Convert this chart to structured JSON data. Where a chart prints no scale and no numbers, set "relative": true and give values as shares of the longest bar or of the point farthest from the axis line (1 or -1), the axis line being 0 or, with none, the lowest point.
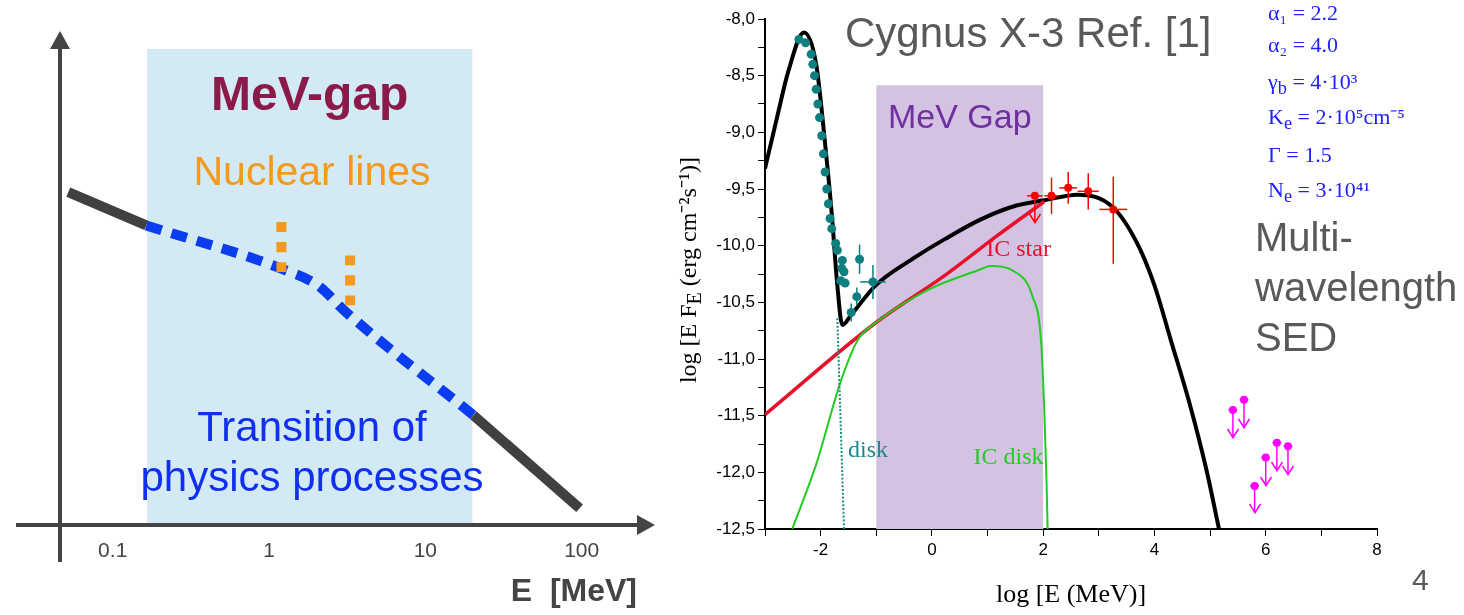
{
  "chart_data": [
    {
      "type": "line",
      "log": "x",
      "relative": true,
      "tick_labels": "x",
      "xlabel": "E  [MeV]",
      "xlim": [
        0.046,
        226
      ],
      "xticks": [
        0.1,
        1,
        10,
        100
      ],
      "bands": [
        {
          "axis": "x",
          "from": 0.166,
          "to": 20,
          "label": "MeV-gap",
          "color": "#d3e9f3"
        }
      ],
      "annotations": [
        "Nuclear lines",
        "Transition of physics processes"
      ],
      "series": [
        {
          "color": "#404040",
          "x": [
            0.052,
            0.164,
            1,
            20.3,
            97
          ],
          "values": [
            1,
            0.9,
            null,
            0.33,
            0.05
          ],
          "line_style": "solid",
          "marker": "none"
        },
        {
          "color": "#0a3cf0",
          "x": [
            0.164,
            1.2,
            2.05,
            3.1,
            20.3
          ],
          "values": [
            0.9,
            0.77,
            0.72,
            0.64,
            0.33
          ],
          "line_style": "dashed",
          "marker": "none"
        },
        {
          "color": "#f39a1e",
          "x": [
            1.2,
            1.2
          ],
          "values": [
            0.76,
            0.91
          ],
          "line_style": "dotted",
          "marker": "none"
        },
        {
          "color": "#f39a1e",
          "x": [
            3.3,
            3.3
          ],
          "values": [
            0.66,
            0.81
          ],
          "line_style": "dotted",
          "marker": "none"
        }
      ]
    },
    {
      "type": "line",
      "title": "Cygnus X-3 Ref. [1]",
      "xlabel": "log [E (MeV)]",
      "ylabel": "log [E F$_{E}$ (erg cm⁻²s⁻¹)]",
      "xlim": [
        -3,
        8
      ],
      "xticks": [
        {
          "value": -3,
          "label": null
        },
        -2,
        {
          "value": -1,
          "label": null
        },
        0,
        {
          "value": 1,
          "label": null
        },
        2,
        {
          "value": 3,
          "label": null
        },
        4,
        {
          "value": 5,
          "label": null
        },
        6,
        {
          "value": 7,
          "label": null
        },
        8
      ],
      "ylim": [
        -12.5,
        -8
      ],
      "yticks": [
        {
          "value": -8,
          "label": "-8,0"
        },
        {
          "value": -8.25,
          "label": null
        },
        {
          "value": -8.5,
          "label": "-8,5"
        },
        {
          "value": -8.75,
          "label": null
        },
        {
          "value": -9,
          "label": "-9,0"
        },
        {
          "value": -9.25,
          "label": null
        },
        {
          "value": -9.5,
          "label": "-9,5"
        },
        {
          "value": -9.75,
          "label": null
        },
        {
          "value": -10,
          "label": "-10,0"
        },
        {
          "value": -10.25,
          "label": null
        },
        {
          "value": -10.5,
          "label": "-10,5"
        },
        {
          "value": -10.75,
          "label": null
        },
        {
          "value": -11,
          "label": "-11,0"
        },
        {
          "value": -11.25,
          "label": null
        },
        {
          "value": -11.5,
          "label": "-11,5"
        },
        {
          "value": -11.75,
          "label": null
        },
        {
          "value": -12,
          "label": "-12,0"
        },
        {
          "value": -12.25,
          "label": null
        },
        {
          "value": -12.5,
          "label": "-12,5"
        }
      ],
      "bands": [
        {
          "axis": "x",
          "from": -1,
          "to": 2,
          "label": "MeV Gap",
          "color": "#d4c2e3"
        }
      ],
      "annotations": [
        "α₁ = 2.2",
        "α₂ = 4.0",
        "γ$_{b}$ = 4·10³",
        "K$_{e}$ = 2·10⁵cm⁻⁵",
        "Γ = 1.5",
        "N$_{e}$ = 3·10⁴¹",
        "Multi-wavelength SED",
        "4"
      ],
      "series": [
        {
          "color": "#000000",
          "x": [
            -3,
            -2.77,
            -2.58,
            -2.3,
            -2.08,
            -1.92,
            -1.8,
            -1.7,
            -1.61,
            -1.45,
            -1.01,
            -0.39,
            0.24,
            0.87,
            1.49,
            2.02,
            2.62,
            3.25,
            3.69,
            4.0,
            4.31,
            4.63,
            4.94,
            5.16
          ],
          "values": [
            -9.32,
            -8.84,
            -8.46,
            -8.12,
            -8.4,
            -9.1,
            -9.72,
            -10.35,
            -10.7,
            -10.61,
            -10.35,
            -10.13,
            -9.94,
            -9.77,
            -9.65,
            -9.6,
            -9.55,
            -9.66,
            -9.98,
            -10.35,
            -10.86,
            -11.39,
            -11.99,
            -12.5
          ],
          "line_style": "solid",
          "marker": "none"
        },
        {
          "name": "IC star",
          "color": "#e8102a",
          "x": [
            -3,
            -1.01,
            0.24,
            1.18,
            2.02
          ],
          "values": [
            -11.49,
            -10.68,
            -10.26,
            -9.91,
            -9.61
          ],
          "line_style": "solid",
          "marker": "none"
        },
        {
          "name": "IC disk",
          "color": "#22cc22",
          "x": [
            -2.51,
            -2.08,
            -1.64,
            -1.33,
            -1.01,
            -0.07,
            0.87,
            1.05,
            1.49,
            1.81,
            1.96,
            2.02,
            2.06,
            2.08
          ],
          "values": [
            -12.5,
            -11.93,
            -11.2,
            -10.83,
            -10.68,
            -10.39,
            -10.21,
            -10.18,
            -10.23,
            -10.45,
            -10.83,
            -11.45,
            -12.08,
            -12.5
          ],
          "line_style": "solid",
          "marker": "none"
        },
        {
          "name": "disk",
          "color": "#1a8a8a",
          "x": [
            -1.7,
            -1.58
          ],
          "values": [
            -10.64,
            -12.5
          ],
          "line_style": "dotted",
          "marker": "none"
        },
        {
          "type": "scatter",
          "color": "#0e7f7f",
          "marker": "circle",
          "x": [
            -2.39,
            -2.27,
            -2.17,
            -2.14,
            -2.11,
            -2.08,
            -2.05,
            -2.02,
            -1.98,
            -1.95,
            -1.92,
            -1.89,
            -1.86,
            -1.83,
            -1.8,
            -1.73,
            -1.7,
            -1.61,
            -1.62,
            -1.58,
            -1.64,
            -1.56,
            -1.3,
            -1.06,
            -1.35,
            -1.45
          ],
          "values": [
            -8.18,
            -8.21,
            -8.31,
            -8.4,
            -8.5,
            -8.62,
            -8.75,
            -8.87,
            -9.03,
            -9.19,
            -9.35,
            -9.5,
            -9.63,
            -9.76,
            -9.85,
            -9.98,
            -10.04,
            -10.13,
            -10.2,
            -10.23,
            -10.31,
            -10.33,
            -10.12,
            -10.32,
            -10.45,
            -10.59
          ],
          "errors": [
            null,
            null,
            null,
            null,
            null,
            null,
            null,
            null,
            null,
            null,
            null,
            null,
            null,
            null,
            null,
            null,
            null,
            null,
            null,
            null,
            null,
            null,
            0.13,
            0.15,
            0.08,
            0.08
          ],
          "xerrors": [
            null,
            null,
            null,
            null,
            null,
            null,
            null,
            null,
            null,
            null,
            null,
            null,
            null,
            null,
            null,
            null,
            null,
            null,
            null,
            null,
            null,
            null,
            null,
            0.23,
            null,
            null
          ]
        },
        {
          "type": "scatter",
          "color": "#ff0000",
          "marker": "circle",
          "x": [
            1.85,
            2.15,
            2.45,
            2.81,
            3.26
          ],
          "values": [
            -9.56,
            -9.56,
            -9.49,
            -9.52,
            -9.68
          ],
          "errors": [
            [
              -9.8,
              -9.56
            ],
            0.16,
            0.14,
            0.16,
            [
              -10.16,
              -9.39
            ]
          ],
          "xerrors": [
            0.14,
            0.13,
            0.16,
            0.19,
            0.25
          ]
        },
        {
          "type": "scatter",
          "color": "#ff00ff",
          "marker": "circle",
          "x": [
            5.41,
            5.61,
            5.8,
            6.0,
            6.2,
            6.4
          ],
          "values": [
            -11.45,
            -11.36,
            -12.12,
            -11.87,
            -11.74,
            -11.77
          ],
          "errors": [
            [
              -11.7,
              -11.45
            ],
            [
              -11.61,
              -11.36
            ],
            [
              -12.36,
              -12.12
            ],
            [
              -12.12,
              -11.87
            ],
            [
              -11.99,
              -11.74
            ],
            [
              -12.02,
              -11.77
            ]
          ],
          "xerrors": [
            0.08,
            0.08,
            0.08,
            0.08,
            0.08,
            0.08
          ]
        }
      ]
    }
  ]
}
